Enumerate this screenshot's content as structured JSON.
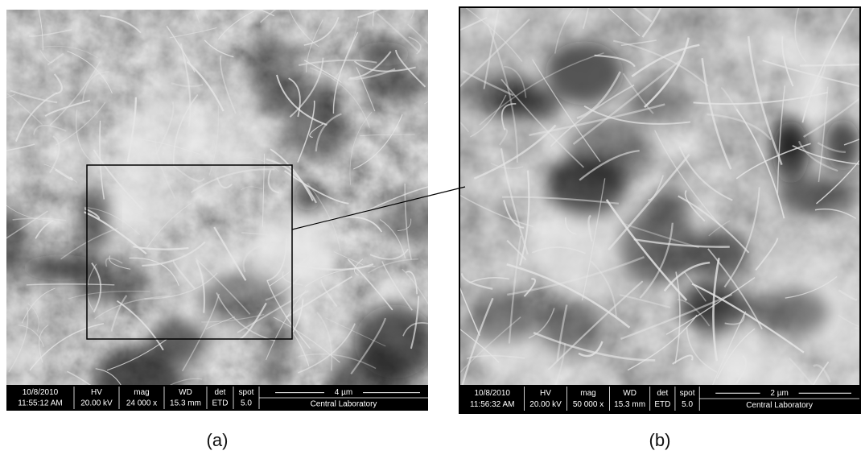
{
  "panels": [
    {
      "caption": "(a)",
      "info": {
        "columns": [
          {
            "header": "10/8/2010",
            "value": "11:55:12 AM"
          },
          {
            "header": "HV",
            "value": "20.00 kV"
          },
          {
            "header": "mag",
            "value": "24 000 x"
          },
          {
            "header": "WD",
            "value": "15.3 mm"
          },
          {
            "header": "det",
            "value": "ETD"
          },
          {
            "header": "spot",
            "value": "5.0"
          }
        ],
        "scale": "4 µm",
        "lab": "Central Laboratory"
      }
    },
    {
      "caption": "(b)",
      "info": {
        "columns": [
          {
            "header": "10/8/2010",
            "value": "11:56:32 AM"
          },
          {
            "header": "HV",
            "value": "20.00 kV"
          },
          {
            "header": "mag",
            "value": "50 000 x"
          },
          {
            "header": "WD",
            "value": "15.3 mm"
          },
          {
            "header": "det",
            "value": "ETD"
          },
          {
            "header": "spot",
            "value": "5.0"
          }
        ],
        "scale": "2 µm",
        "lab": "Central Laboratory"
      }
    }
  ]
}
